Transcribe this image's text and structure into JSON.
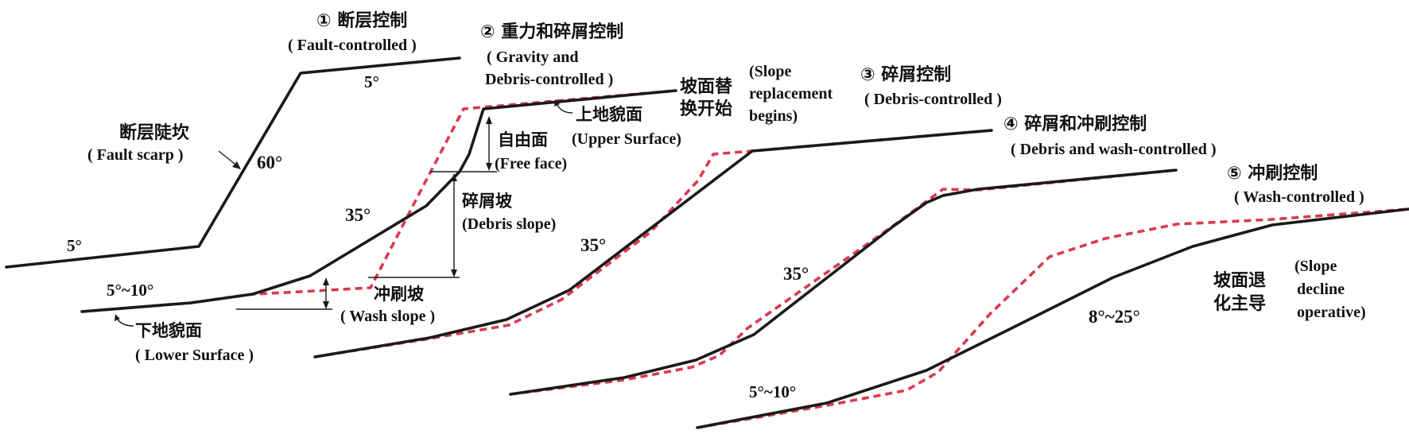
{
  "colors": {
    "profile": "#1a1a1a",
    "replacement": "#d93a4f"
  },
  "stage1": {
    "title_cn": "① 断层控制",
    "title_en": "( Fault-controlled )",
    "scarp_cn": "断层陡坎",
    "scarp_en": "( Fault scarp )",
    "angle_top": "5°",
    "angle_scarp": "60°",
    "angle_base": "5°"
  },
  "stage2": {
    "title_cn": "② 重力和碎屑控制",
    "title_en_1": "( Gravity and",
    "title_en_2": "Debris-controlled )",
    "upper_surface_cn": "上地貌面",
    "free_face_cn": "自由面",
    "upper_surface_en": "(Upper Surface)",
    "free_face_en": "(Free face)",
    "debris_slope_cn": "碎屑坡",
    "debris_slope_en": "(Debris slope)",
    "angle_debris": "35°",
    "angle_low": "5°~10°",
    "wash_slope_cn": "冲刷坡",
    "wash_slope_en": "( Wash slope )",
    "lower_surface_cn": "下地貌面",
    "lower_surface_en": "( Lower Surface )",
    "replacement_cn_1": "坡面替",
    "replacement_cn_2": "换开始",
    "replacement_en_1": "(Slope",
    "replacement_en_2": "replacement",
    "replacement_en_3": "begins)"
  },
  "stage3": {
    "title_cn": "③ 碎屑控制",
    "title_en": "( Debris-controlled )",
    "angle": "35°"
  },
  "stage4": {
    "title_cn": "④ 碎屑和冲刷控制",
    "title_en": "( Debris and wash-controlled )",
    "angle": "35°",
    "angle_low": "5°~10°"
  },
  "stage5": {
    "title_cn": "⑤ 冲刷控制",
    "title_en": "( Wash-controlled )",
    "angle": "8°~25°",
    "decline_cn_1": "坡面退",
    "decline_cn_2": "化主导",
    "decline_en_1": "(Slope",
    "decline_en_2": "decline",
    "decline_en_3": "operative)"
  }
}
